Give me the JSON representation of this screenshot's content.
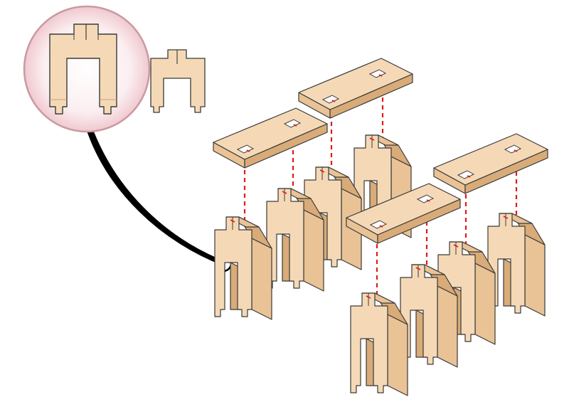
{
  "diagram": {
    "colors": {
      "wood_face": "#f5d9b6",
      "wood_side": "#e9c396",
      "wood_dark": "#d8ab78",
      "outline": "#3a3a3a",
      "guide_dash": "#e01b1b",
      "slot_mark": "#e01b1b",
      "zoom_ring": "#c99aa2",
      "zoom_fill": "#f7e4e6",
      "callout": "#000000"
    },
    "callout_icon": "magnifier-callout",
    "top_count": 4,
    "leg_count": 8
  }
}
